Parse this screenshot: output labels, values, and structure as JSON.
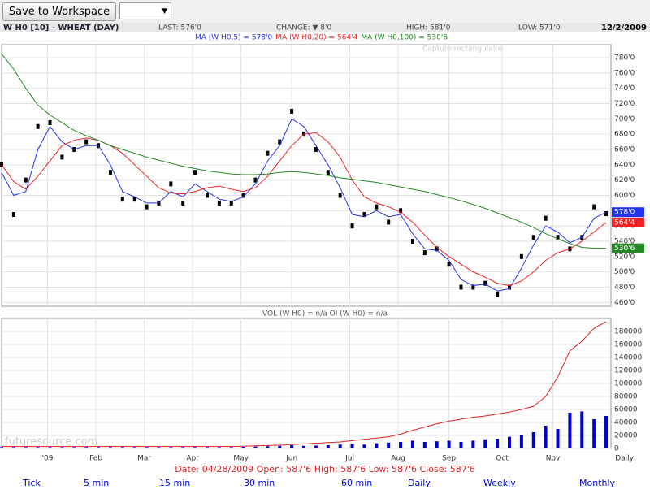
{
  "toolbar": {
    "button": "Save to Workspace"
  },
  "header": {
    "symbol": "W H0 [10] - WHEAT (DAY)",
    "last": "LAST: 576'0",
    "change": "CHANGE: ▼ 8'0",
    "high": "HIGH: 581'0",
    "low": "LOW: 571'0",
    "date": "12/2/2009"
  },
  "chart_data": [
    {
      "type": "candlestick",
      "xlim": [
        0,
        252
      ],
      "x": [
        0,
        5,
        10,
        15,
        20,
        25,
        30,
        35,
        40,
        45,
        50,
        55,
        60,
        65,
        70,
        75,
        80,
        85,
        90,
        95,
        100,
        105,
        110,
        115,
        120,
        125,
        130,
        135,
        140,
        145,
        150,
        155,
        160,
        165,
        170,
        175,
        180,
        185,
        190,
        195,
        200,
        205,
        210,
        215,
        220,
        225,
        230,
        235,
        240,
        245,
        250
      ],
      "closes": {
        "color": "#000000",
        "values": [
          640,
          575,
          620,
          690,
          695,
          650,
          660,
          670,
          665,
          630,
          595,
          595,
          585,
          590,
          615,
          590,
          630,
          600,
          590,
          590,
          600,
          620,
          655,
          670,
          710,
          680,
          660,
          630,
          600,
          560,
          575,
          585,
          565,
          580,
          540,
          525,
          530,
          510,
          480,
          480,
          485,
          470,
          480,
          520,
          545,
          570,
          545,
          530,
          545,
          585,
          576
        ]
      },
      "series": [
        {
          "name": "MA (W H0,5) = 578'0",
          "color": "#2233ee",
          "last_value": {
            "value": 578,
            "label": "578'0"
          },
          "values": [
            630,
            600,
            605,
            660,
            690,
            670,
            660,
            665,
            665,
            640,
            605,
            598,
            590,
            590,
            605,
            598,
            615,
            605,
            595,
            592,
            598,
            615,
            645,
            665,
            700,
            690,
            665,
            640,
            610,
            575,
            572,
            580,
            572,
            575,
            550,
            530,
            528,
            515,
            490,
            482,
            484,
            475,
            478,
            505,
            535,
            560,
            552,
            538,
            545,
            570,
            578
          ]
        },
        {
          "name": "MA (W H0,20) = 564'4",
          "color": "#ee2222",
          "last_value": {
            "value": 564.5,
            "label": "564'4"
          },
          "values": [
            640,
            618,
            608,
            625,
            645,
            665,
            672,
            675,
            672,
            665,
            655,
            640,
            625,
            610,
            603,
            602,
            605,
            610,
            612,
            608,
            605,
            610,
            625,
            645,
            665,
            680,
            682,
            670,
            650,
            620,
            598,
            590,
            585,
            578,
            565,
            548,
            532,
            520,
            510,
            500,
            493,
            485,
            482,
            488,
            500,
            515,
            525,
            530,
            540,
            552,
            564.5
          ]
        },
        {
          "name": "MA (W H0,100) = 530'6",
          "color": "#228822",
          "last_value": {
            "value": 530.75,
            "label": "530'6"
          },
          "values": [
            785,
            765,
            740,
            718,
            705,
            695,
            685,
            678,
            672,
            665,
            660,
            655,
            650,
            646,
            642,
            638,
            635,
            632,
            630,
            628,
            627,
            627,
            628,
            630,
            631,
            630,
            628,
            626,
            623,
            621,
            619,
            617,
            614,
            611,
            608,
            605,
            601,
            597,
            593,
            588,
            583,
            577,
            571,
            565,
            558,
            550,
            543,
            537,
            532,
            531,
            530.75
          ]
        }
      ],
      "ylim": [
        455,
        797
      ],
      "yticks": [
        {
          "value": 460,
          "label": "460'0"
        },
        {
          "value": 480,
          "label": "480'0"
        },
        {
          "value": 500,
          "label": "500'0"
        },
        {
          "value": 520,
          "label": "520'0"
        },
        {
          "value": 540,
          "label": "540'0"
        },
        {
          "value": 560,
          "label": "560'0"
        },
        {
          "value": 580,
          "label": "580'0"
        },
        {
          "value": 600,
          "label": "600'0"
        },
        {
          "value": 620,
          "label": "620'0"
        },
        {
          "value": 640,
          "label": "640'0"
        },
        {
          "value": 660,
          "label": "660'0"
        },
        {
          "value": 680,
          "label": "680'0"
        },
        {
          "value": 700,
          "label": "700'0"
        },
        {
          "value": 720,
          "label": "720'0"
        },
        {
          "value": 740,
          "label": "740'0"
        },
        {
          "value": 760,
          "label": "760'0"
        },
        {
          "value": 780,
          "label": "780'0"
        }
      ],
      "grid": true,
      "watermark": "Capture rectangulaire"
    },
    {
      "type": "volume",
      "title": "VOL (W H0) = n/a OI (W H0) = n/a",
      "xlim": [
        0,
        252
      ],
      "xlabel": "Daily",
      "watermark": "futuresource.com",
      "x": [
        0,
        5,
        10,
        15,
        20,
        25,
        30,
        35,
        40,
        45,
        50,
        55,
        60,
        65,
        70,
        75,
        80,
        85,
        90,
        95,
        100,
        105,
        110,
        115,
        120,
        125,
        130,
        135,
        140,
        145,
        150,
        155,
        160,
        165,
        170,
        175,
        180,
        185,
        190,
        195,
        200,
        205,
        210,
        215,
        220,
        225,
        230,
        235,
        240,
        245,
        250
      ],
      "volume": {
        "color": "#0000cc",
        "values": [
          2000,
          2000,
          2000,
          2000,
          2000,
          2000,
          2000,
          2000,
          2000,
          2000,
          2000,
          2000,
          2000,
          2000,
          2000,
          2000,
          2000,
          2000,
          2000,
          2000,
          2500,
          3000,
          3500,
          4000,
          5000,
          4000,
          4500,
          5000,
          6000,
          7000,
          6000,
          8000,
          9000,
          10000,
          12000,
          10000,
          11000,
          12000,
          10000,
          12000,
          14000,
          15000,
          18000,
          20000,
          25000,
          35000,
          30000,
          55000,
          57000,
          45000,
          50000
        ]
      },
      "open_interest": {
        "color": "#dd2222",
        "values": [
          3000,
          3000,
          3000,
          3000,
          3000,
          3000,
          3000,
          3000,
          3000,
          3000,
          3000,
          3000,
          3000,
          3000,
          3000,
          3000,
          3000,
          3000,
          3000,
          3000,
          3500,
          4000,
          4500,
          5000,
          6000,
          7000,
          8000,
          9000,
          10000,
          12000,
          14000,
          16000,
          18000,
          22000,
          28000,
          33000,
          38000,
          42000,
          45000,
          48000,
          50000,
          53000,
          56000,
          60000,
          65000,
          80000,
          110000,
          150000,
          165000,
          185000,
          195000
        ]
      },
      "ylim": [
        0,
        200000
      ],
      "yticks": [
        0,
        20000,
        40000,
        60000,
        80000,
        100000,
        120000,
        140000,
        160000,
        180000
      ],
      "xticks": [
        {
          "value": 19,
          "label": "'09"
        },
        {
          "value": 39,
          "label": "Feb"
        },
        {
          "value": 59,
          "label": "Mar"
        },
        {
          "value": 79,
          "label": "Apr"
        },
        {
          "value": 99,
          "label": "May"
        },
        {
          "value": 120,
          "label": "Jun"
        },
        {
          "value": 144,
          "label": "Jul"
        },
        {
          "value": 164,
          "label": "Aug"
        },
        {
          "value": 185,
          "label": "Sep"
        },
        {
          "value": 207,
          "label": "Oct"
        },
        {
          "value": 228,
          "label": "Nov"
        }
      ],
      "grid": true
    }
  ],
  "status": "Date: 04/28/2009 Open: 587'6 High: 587'6 Low: 587'6 Close: 587'6",
  "links": [
    "Tick",
    "5 min",
    "15 min",
    "30 min",
    "60 min",
    "Daily",
    "Weekly",
    "Monthly"
  ]
}
